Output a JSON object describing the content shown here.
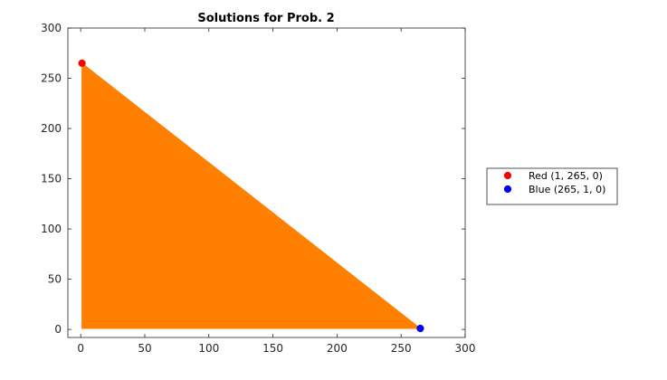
{
  "chart_data": {
    "type": "area",
    "title": "Solutions for Prob. 2",
    "xlabel": "",
    "ylabel": "",
    "xlim": [
      -10,
      300
    ],
    "ylim": [
      -8,
      300
    ],
    "xticks": [
      0,
      50,
      100,
      150,
      200,
      250,
      300
    ],
    "yticks": [
      0,
      50,
      100,
      150,
      200,
      250,
      300
    ],
    "grid": false,
    "legend_position": "right",
    "region": {
      "vertices": [
        [
          1,
          265
        ],
        [
          265,
          1
        ],
        [
          1,
          1
        ]
      ],
      "color": "#ff8000"
    },
    "series": [
      {
        "name": "Red (1, 265, 0)",
        "x": [
          1
        ],
        "y": [
          265
        ],
        "color": "#ff0000",
        "marker": "circle"
      },
      {
        "name": "Blue (265, 1, 0)",
        "x": [
          265
        ],
        "y": [
          1
        ],
        "color": "#0000ff",
        "marker": "circle"
      }
    ]
  }
}
